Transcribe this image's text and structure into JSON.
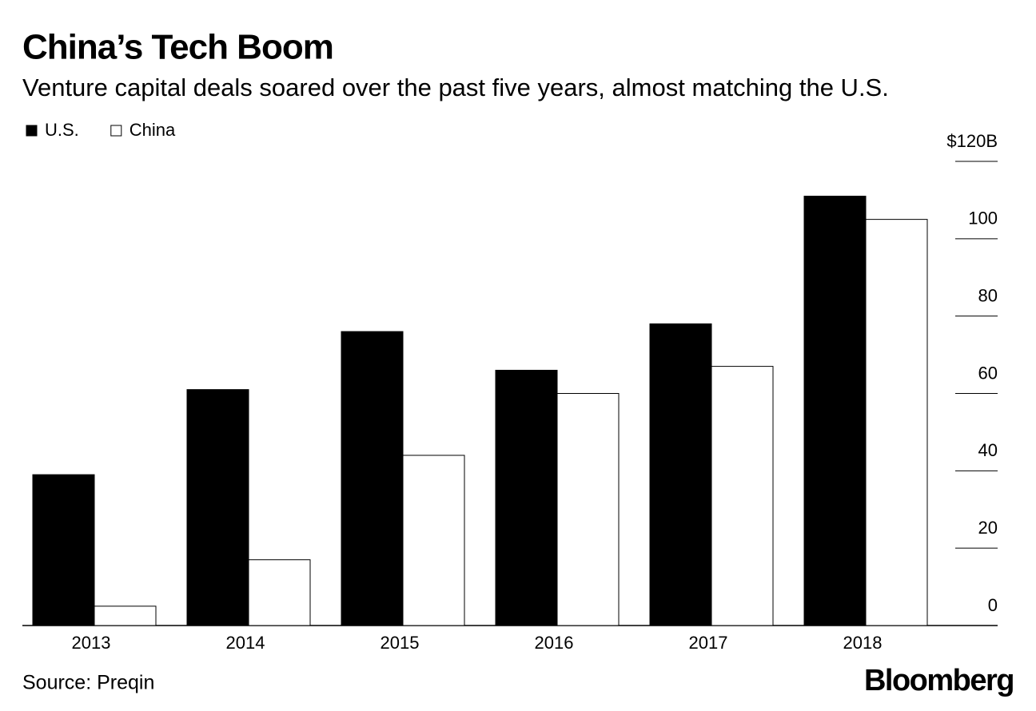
{
  "chart_data": {
    "type": "bar",
    "title": "China’s Tech Boom",
    "subtitle": "Venture capital deals soared over the past five years, almost matching the U.S.",
    "categories": [
      "2013",
      "2014",
      "2015",
      "2016",
      "2017",
      "2018"
    ],
    "series": [
      {
        "name": "U.S.",
        "color": "#000000",
        "values": [
          39,
          61,
          76,
          66,
          78,
          111
        ]
      },
      {
        "name": "China",
        "color": "#ffffff",
        "values": [
          5,
          17,
          44,
          60,
          67,
          105
        ]
      }
    ],
    "ylim": [
      0,
      120
    ],
    "yticks": [
      0,
      20,
      40,
      60,
      80,
      100,
      {
        "value": 120,
        "label": "$120B"
      }
    ],
    "source": "Source: Preqin",
    "brand": "Bloomberg"
  }
}
